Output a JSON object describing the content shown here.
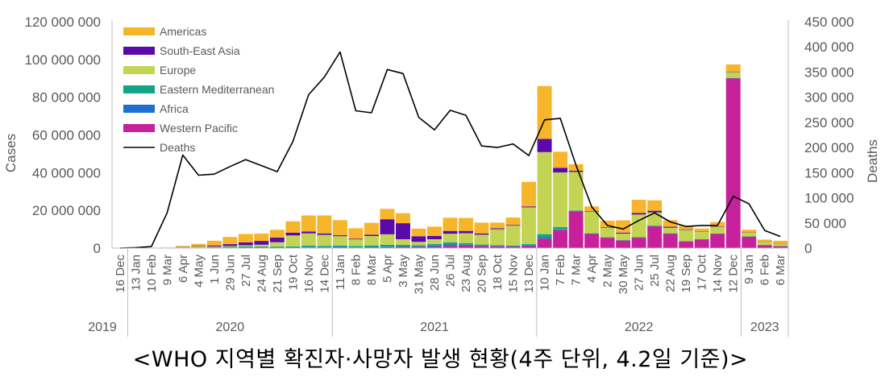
{
  "caption": "<WHO 지역별 확진자·사망자 발생 현황(4주 단위, 4.2일 기준)>",
  "chart_data": {
    "type": "bar",
    "stacked": true,
    "title": "",
    "ylabel": "Cases",
    "y2label": "Deaths",
    "ylim": [
      0,
      120000000
    ],
    "y2lim": [
      0,
      450000
    ],
    "yticks": [
      "0",
      "20 000 000",
      "40 000 000",
      "60 000 000",
      "80 000 000",
      "100 000 000",
      "120 000 000"
    ],
    "y2ticks": [
      "0",
      "50 000",
      "100 000",
      "150 000",
      "200 000",
      "250 000",
      "300 000",
      "350 000",
      "400 000",
      "450 000"
    ],
    "categories": [
      "16 Dec",
      "13 Jan",
      "10 Feb",
      "9 Mar",
      "6 Apr",
      "4 May",
      "1 Jun",
      "29 Jun",
      "27 Jul",
      "24 Aug",
      "21 Sep",
      "19 Oct",
      "16 Nov",
      "14 Dec",
      "11 Jan",
      "8 Feb",
      "8 Mar",
      "5 Apr",
      "3 May",
      "31 May",
      "28 Jun",
      "26 Jul",
      "23 Aug",
      "20 Sep",
      "18 Oct",
      "15 Nov",
      "13 Dec",
      "10 Jan",
      "7 Feb",
      "7 Mar",
      "4 Apr",
      "2 May",
      "30 May",
      "27 Jun",
      "25 Jul",
      "22 Aug",
      "19 Sep",
      "17 Oct",
      "14 Nov",
      "12 Dec",
      "9 Jan",
      "6 Feb",
      "6 Mar"
    ],
    "years": [
      {
        "label": "2019",
        "start": 0,
        "end": 1
      },
      {
        "label": "2020",
        "start": 1,
        "end": 14
      },
      {
        "label": "2021",
        "start": 14,
        "end": 27
      },
      {
        "label": "2022",
        "start": 27,
        "end": 40
      },
      {
        "label": "2023",
        "start": 40,
        "end": 43
      }
    ],
    "series": [
      {
        "name": "Western Pacific",
        "color": "#C6209B",
        "values": [
          0,
          0,
          0,
          0.1,
          0.1,
          0.1,
          0.1,
          0.1,
          0.1,
          0.2,
          0.2,
          0.2,
          0.3,
          0.3,
          0.4,
          0.3,
          0.4,
          0.5,
          0.6,
          0.6,
          0.8,
          1.2,
          1.3,
          1.0,
          0.9,
          0.8,
          1.1,
          5.0,
          9.5,
          19.5,
          7.5,
          5.5,
          4.0,
          5.5,
          11.5,
          7.5,
          3.5,
          4.5,
          7.5,
          90,
          6.0,
          1.5,
          1.0
        ]
      },
      {
        "name": "Africa",
        "color": "#1F6FD1",
        "values": [
          0,
          0,
          0,
          0,
          0.02,
          0.05,
          0.1,
          0.2,
          0.3,
          0.2,
          0.2,
          0.2,
          0.3,
          0.3,
          0.4,
          0.2,
          0.2,
          0.2,
          0.2,
          0.3,
          0.6,
          0.7,
          0.5,
          0.3,
          0.2,
          0.2,
          0.5,
          0.8,
          0.4,
          0.1,
          0.1,
          0.1,
          0.1,
          0.1,
          0.1,
          0.1,
          0.05,
          0.05,
          0.05,
          0.05,
          0.05,
          0.02,
          0.02
        ]
      },
      {
        "name": "Eastern Mediterranean",
        "color": "#11A58A",
        "values": [
          0,
          0,
          0,
          0,
          0.03,
          0.1,
          0.2,
          0.4,
          0.5,
          0.4,
          0.4,
          0.5,
          0.7,
          0.6,
          0.5,
          0.6,
          0.8,
          1.1,
          0.9,
          0.6,
          0.8,
          1.2,
          0.9,
          0.6,
          0.4,
          0.4,
          0.5,
          1.6,
          1.2,
          0.3,
          0.2,
          0.1,
          0.1,
          0.2,
          0.3,
          0.2,
          0.1,
          0.1,
          0.1,
          0.1,
          0.1,
          0.05,
          0.05
        ]
      },
      {
        "name": "Europe",
        "color": "#C3D455",
        "values": [
          0,
          0,
          0,
          0,
          0.5,
          0.6,
          0.4,
          0.4,
          0.6,
          1.0,
          2.3,
          5.8,
          6.5,
          5.8,
          5.0,
          3.5,
          5.0,
          5.5,
          3.0,
          1.8,
          2.5,
          4.5,
          5.2,
          5.2,
          8.5,
          10.5,
          19.5,
          43.5,
          29.0,
          20.5,
          11.5,
          5.0,
          3.5,
          12.0,
          7.0,
          3.0,
          6.0,
          4.0,
          3.5,
          3.0,
          2.0,
          1.8,
          1.2
        ]
      },
      {
        "name": "South-East Asia",
        "color": "#5B0AAA",
        "values": [
          0,
          0,
          0,
          0,
          0.1,
          0.2,
          0.6,
          1.0,
          1.5,
          2.0,
          2.5,
          1.5,
          1.0,
          0.8,
          0.5,
          0.4,
          0.7,
          8.0,
          8.5,
          3.0,
          1.7,
          1.5,
          1.2,
          0.7,
          0.5,
          0.4,
          0.5,
          7.0,
          2.5,
          0.6,
          0.3,
          0.3,
          0.5,
          0.8,
          0.9,
          0.5,
          0.3,
          0.2,
          0.2,
          0.2,
          0.1,
          0.1,
          0.1
        ]
      },
      {
        "name": "Americas",
        "color": "#F7B52B",
        "values": [
          0,
          0,
          0,
          0,
          0.4,
          1.2,
          2.5,
          3.8,
          4.5,
          3.9,
          4.1,
          6.0,
          8.5,
          9.5,
          8.0,
          5.5,
          6.3,
          5.5,
          5.3,
          4.0,
          5.0,
          7.0,
          6.9,
          5.7,
          3.0,
          3.9,
          13.0,
          28.0,
          8.5,
          3.5,
          2.5,
          3.5,
          6.5,
          7.0,
          5.5,
          3.5,
          2.0,
          1.5,
          2.5,
          4.0,
          1.5,
          1.0,
          1.5
        ]
      }
    ],
    "units_note": "Bar series values in millions of cases",
    "line": {
      "name": "Deaths",
      "color": "#000000",
      "axis": "right",
      "values": [
        0,
        1000,
        3000,
        70000,
        185000,
        145000,
        147000,
        162000,
        176000,
        164000,
        152000,
        212000,
        305000,
        340000,
        390000,
        273000,
        269000,
        355000,
        347000,
        260000,
        235000,
        274000,
        264000,
        203000,
        200000,
        207000,
        184000,
        255000,
        258000,
        165000,
        82000,
        45000,
        38000,
        55000,
        70000,
        52000,
        43000,
        45000,
        45000,
        103000,
        88000,
        35000,
        23000
      ]
    },
    "legend": {
      "position": "top-left",
      "entries": [
        "Americas",
        "South-East Asia",
        "Europe",
        "Eastern Mediterranean",
        "Africa",
        "Western Pacific",
        "Deaths"
      ]
    },
    "grid": false
  }
}
